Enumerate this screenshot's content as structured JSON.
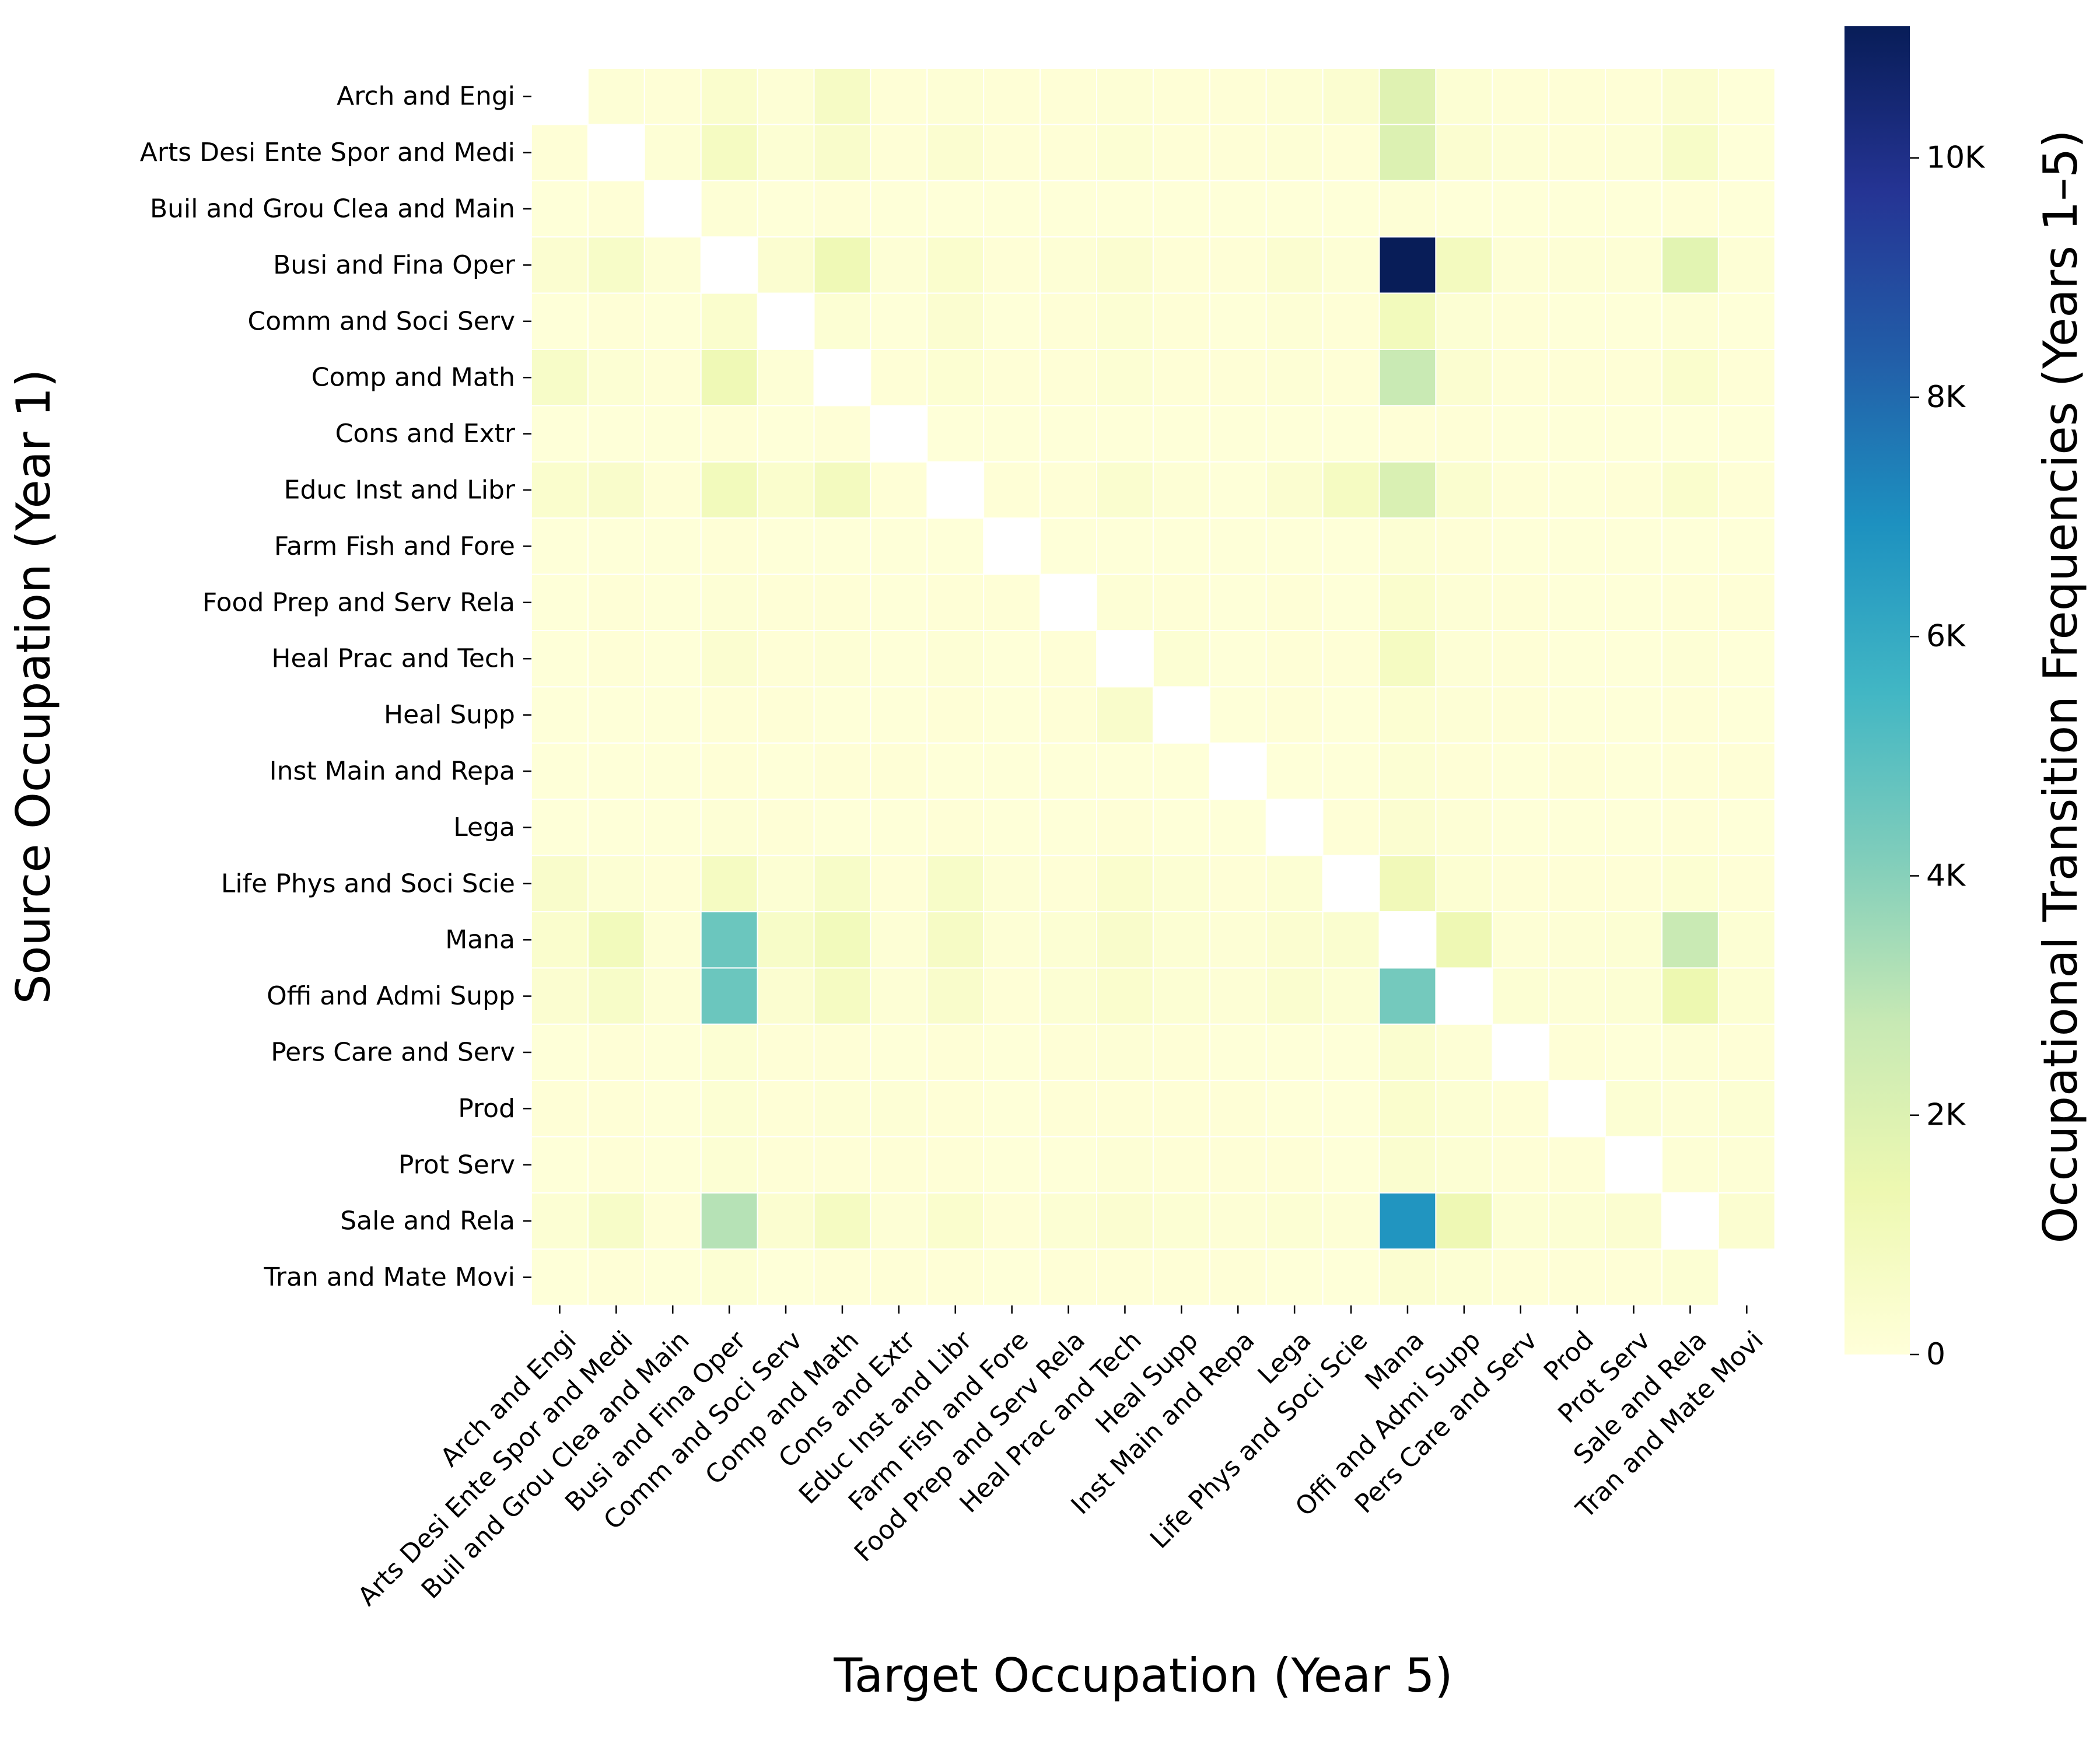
{
  "chart_data": {
    "type": "heatmap",
    "xlabel": "Target Occupation (Year 5)",
    "ylabel": "Source Occupation (Year 1)",
    "colorbar_label": "Occupational Transition Frequencies (Years 1–5)",
    "colorbar_ticks": [
      {
        "value": 0,
        "label": "0"
      },
      {
        "value": 2000,
        "label": "2K"
      },
      {
        "value": 4000,
        "label": "4K"
      },
      {
        "value": 6000,
        "label": "6K"
      },
      {
        "value": 8000,
        "label": "8K"
      },
      {
        "value": 10000,
        "label": "10K"
      }
    ],
    "vmin": 0,
    "vmax": 11100,
    "colormap": "YlGnBu",
    "rows": [
      "Arch and Engi",
      "Arts Desi Ente Spor and Medi",
      "Buil and Grou Clea and Main",
      "Busi and Fina Oper",
      "Comm and Soci Serv",
      "Comp and Math",
      "Cons and Extr",
      "Educ Inst and Libr",
      "Farm Fish and Fore",
      "Food Prep and Serv Rela",
      "Heal Prac and Tech",
      "Heal Supp",
      "Inst Main and Repa",
      "Lega",
      "Life Phys and Soci Scie",
      "Mana",
      "Offi and Admi Supp",
      "Pers Care and Serv",
      "Prod",
      "Prot Serv",
      "Sale and Rela",
      "Tran and Mate Movi"
    ],
    "columns": [
      "Arch and Engi",
      "Arts Desi Ente Spor and Medi",
      "Buil and Grou Clea and Main",
      "Busi and Fina Oper",
      "Comm and Soci Serv",
      "Comp and Math",
      "Cons and Extr",
      "Educ Inst and Libr",
      "Farm Fish and Fore",
      "Food Prep and Serv Rela",
      "Heal Prac and Tech",
      "Heal Supp",
      "Inst Main and Repa",
      "Lega",
      "Life Phys and Soci Scie",
      "Mana",
      "Offi and Admi Supp",
      "Pers Care and Serv",
      "Prod",
      "Prot Serv",
      "Sale and Rela",
      "Tran and Mate Movi"
    ],
    "values": [
      [
        null,
        150,
        100,
        400,
        150,
        700,
        100,
        150,
        100,
        100,
        150,
        100,
        100,
        150,
        300,
        1900,
        200,
        100,
        100,
        100,
        300,
        50
      ],
      [
        100,
        null,
        150,
        800,
        200,
        500,
        100,
        300,
        100,
        100,
        200,
        100,
        100,
        150,
        100,
        2000,
        300,
        150,
        100,
        150,
        600,
        50
      ],
      [
        50,
        100,
        null,
        150,
        50,
        100,
        50,
        50,
        50,
        50,
        50,
        50,
        50,
        50,
        50,
        150,
        50,
        50,
        50,
        50,
        100,
        50
      ],
      [
        300,
        600,
        150,
        null,
        300,
        1200,
        150,
        400,
        100,
        150,
        300,
        100,
        100,
        300,
        150,
        11100,
        900,
        150,
        150,
        150,
        1800,
        150
      ],
      [
        50,
        100,
        50,
        400,
        null,
        200,
        50,
        300,
        50,
        100,
        200,
        100,
        50,
        150,
        100,
        1000,
        200,
        100,
        50,
        50,
        150,
        50
      ],
      [
        600,
        200,
        100,
        1200,
        150,
        null,
        100,
        250,
        100,
        100,
        200,
        100,
        100,
        150,
        100,
        2700,
        300,
        100,
        100,
        100,
        400,
        100
      ],
      [
        50,
        50,
        50,
        100,
        50,
        100,
        null,
        50,
        50,
        50,
        50,
        50,
        50,
        50,
        50,
        100,
        100,
        50,
        50,
        50,
        50,
        50
      ],
      [
        400,
        500,
        100,
        1000,
        400,
        900,
        100,
        null,
        100,
        100,
        350,
        150,
        50,
        300,
        800,
        2100,
        350,
        100,
        50,
        100,
        400,
        100
      ],
      [
        50,
        50,
        50,
        100,
        50,
        50,
        50,
        50,
        null,
        50,
        50,
        50,
        50,
        50,
        50,
        200,
        100,
        50,
        50,
        50,
        50,
        50
      ],
      [
        50,
        100,
        50,
        150,
        100,
        100,
        50,
        100,
        100,
        null,
        150,
        100,
        50,
        100,
        50,
        400,
        150,
        100,
        50,
        50,
        100,
        100
      ],
      [
        50,
        100,
        50,
        300,
        100,
        150,
        50,
        150,
        50,
        100,
        null,
        200,
        50,
        100,
        100,
        800,
        150,
        100,
        50,
        50,
        150,
        50
      ],
      [
        50,
        50,
        50,
        100,
        100,
        50,
        50,
        100,
        50,
        100,
        500,
        null,
        50,
        100,
        50,
        250,
        150,
        100,
        50,
        50,
        100,
        50
      ],
      [
        50,
        50,
        50,
        100,
        50,
        100,
        100,
        50,
        50,
        50,
        50,
        50,
        null,
        50,
        50,
        200,
        100,
        50,
        100,
        50,
        100,
        100
      ],
      [
        50,
        50,
        50,
        150,
        100,
        50,
        50,
        100,
        50,
        50,
        100,
        50,
        50,
        null,
        100,
        300,
        150,
        50,
        50,
        50,
        100,
        50
      ],
      [
        500,
        200,
        100,
        800,
        200,
        600,
        100,
        600,
        150,
        100,
        400,
        200,
        100,
        200,
        null,
        1100,
        250,
        100,
        100,
        100,
        250,
        100
      ],
      [
        400,
        1000,
        150,
        4600,
        600,
        1000,
        150,
        700,
        150,
        200,
        500,
        200,
        150,
        300,
        350,
        null,
        1300,
        150,
        150,
        200,
        2700,
        200
      ],
      [
        300,
        600,
        150,
        4600,
        300,
        800,
        150,
        500,
        100,
        200,
        400,
        200,
        150,
        350,
        200,
        4400,
        null,
        200,
        150,
        200,
        1400,
        250
      ],
      [
        50,
        100,
        50,
        200,
        100,
        100,
        50,
        100,
        50,
        100,
        150,
        100,
        50,
        50,
        50,
        350,
        150,
        null,
        100,
        50,
        150,
        100
      ],
      [
        100,
        100,
        50,
        200,
        100,
        150,
        150,
        100,
        50,
        100,
        100,
        100,
        100,
        50,
        50,
        400,
        200,
        100,
        null,
        200,
        150,
        200
      ],
      [
        50,
        100,
        50,
        200,
        100,
        100,
        100,
        100,
        50,
        50,
        150,
        100,
        100,
        100,
        50,
        350,
        200,
        100,
        100,
        null,
        150,
        150
      ],
      [
        200,
        600,
        100,
        3100,
        300,
        800,
        150,
        400,
        100,
        200,
        300,
        200,
        150,
        200,
        150,
        6800,
        1300,
        200,
        200,
        300,
        null,
        300
      ],
      [
        50,
        100,
        50,
        200,
        50,
        100,
        100,
        100,
        50,
        100,
        100,
        100,
        100,
        50,
        50,
        300,
        200,
        100,
        100,
        100,
        200,
        null
      ]
    ]
  }
}
